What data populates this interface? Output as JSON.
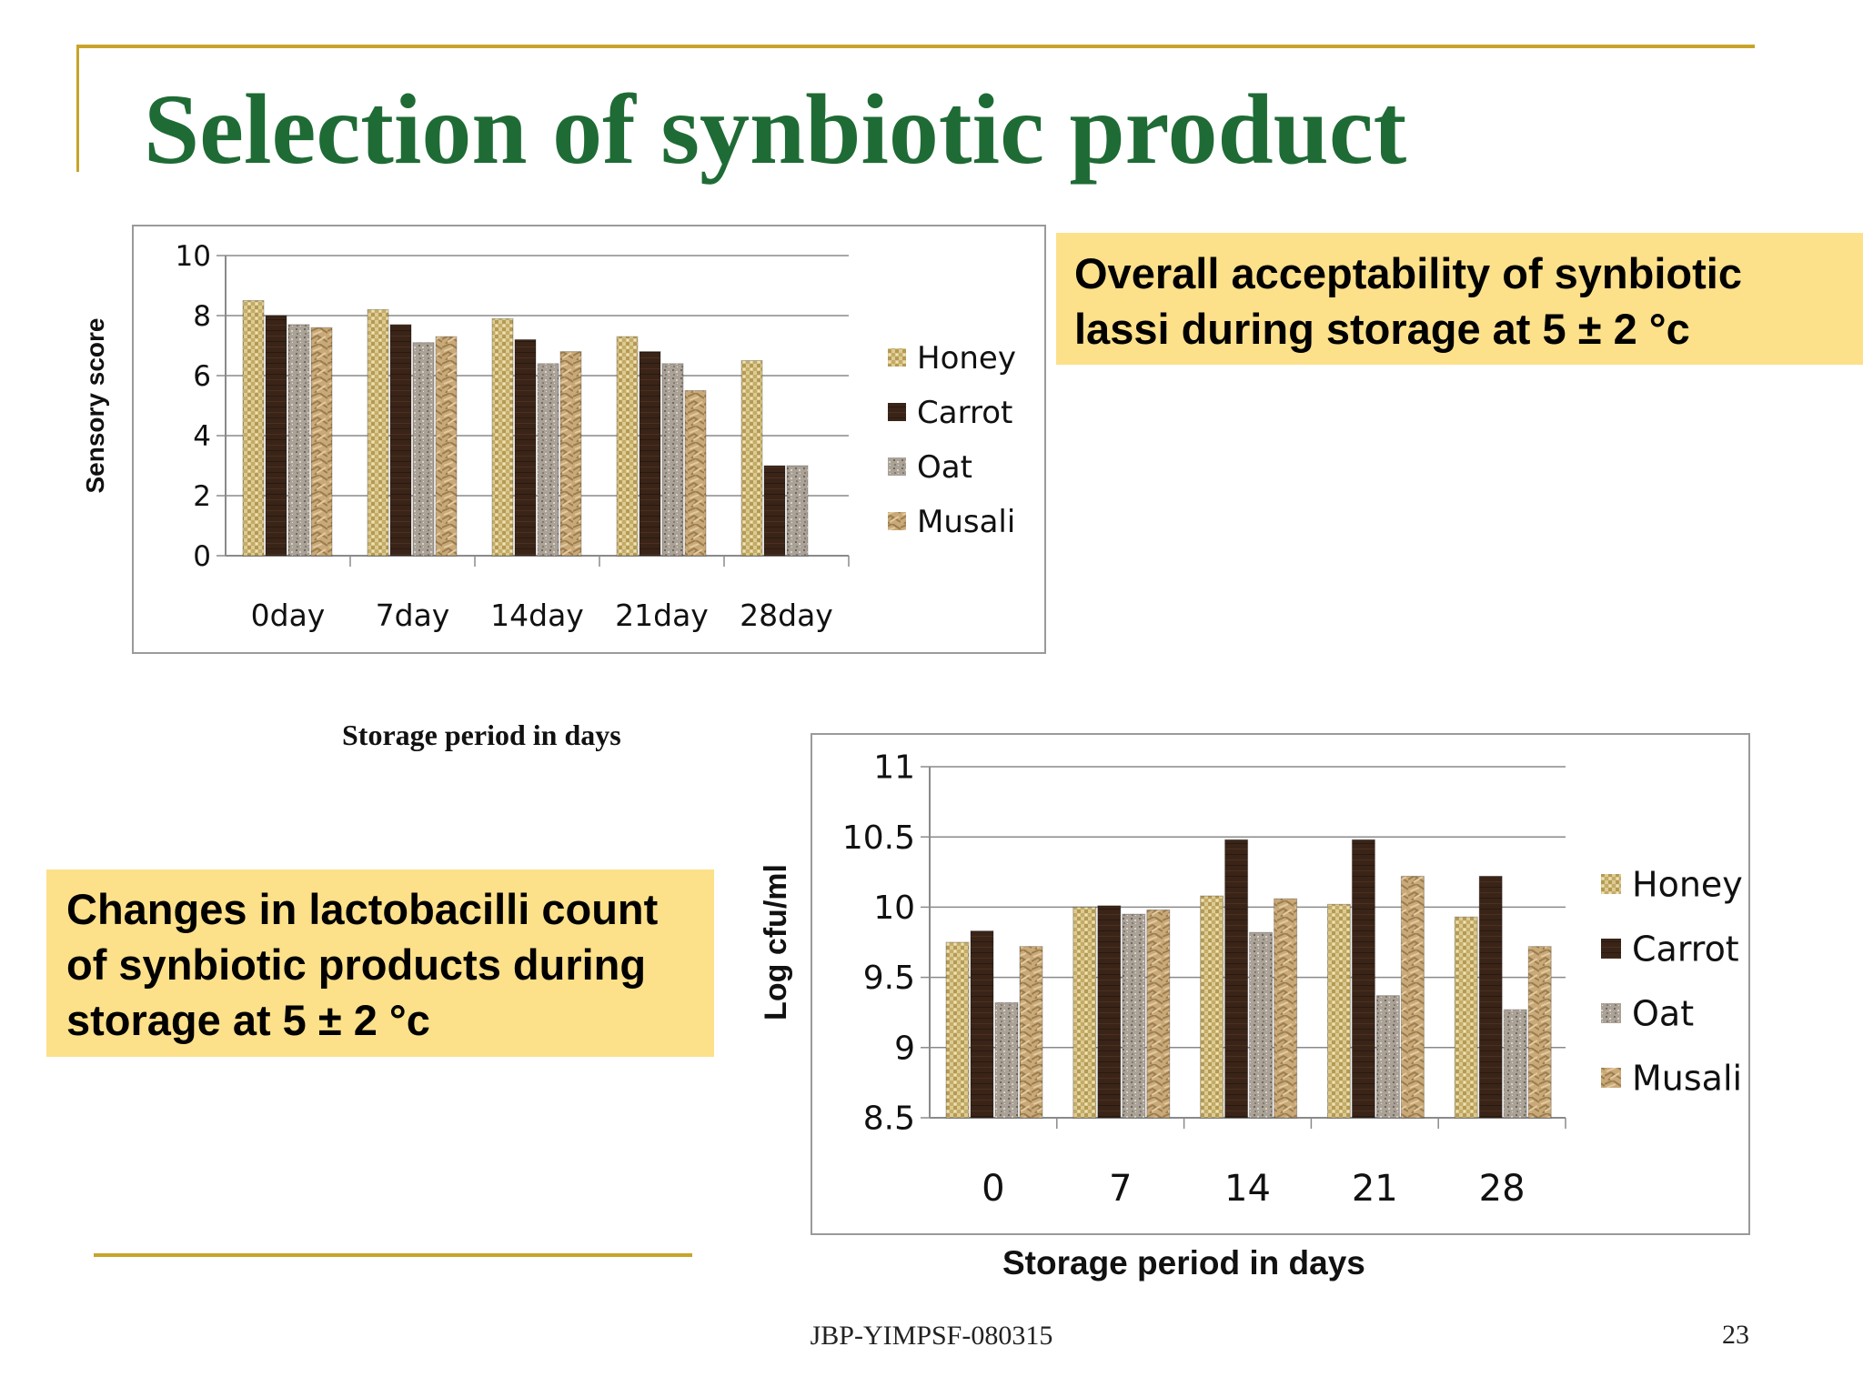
{
  "slide": {
    "title": "Selection of synbiotic product",
    "callout_top": "Overall acceptability of  synbiotic lassi during storage at 5 ± 2 °c",
    "callout_left": "Changes in lactobacilli count  of synbiotic products during storage at 5 ± 2 °c",
    "footer": "JBP-YIMPSF-080315",
    "page_number": "23",
    "accent_color": "#c8a42a",
    "title_color": "#1f6b35",
    "callout_color": "#fde08a"
  },
  "chart_data": [
    {
      "type": "bar",
      "categories": [
        "0day",
        "7day",
        "14day",
        "21day",
        "28day"
      ],
      "series": [
        {
          "name": "Honey",
          "values": [
            8.5,
            8.2,
            7.9,
            7.3,
            6.5
          ],
          "color": "#d6c48a",
          "pattern": "woven"
        },
        {
          "name": "Carrot",
          "values": [
            8.0,
            7.7,
            7.2,
            6.8,
            3.0
          ],
          "color": "#3a2418",
          "pattern": "dark"
        },
        {
          "name": "Oat",
          "values": [
            7.7,
            7.1,
            6.4,
            6.4,
            3.0
          ],
          "color": "#a39a8f",
          "pattern": "granite"
        },
        {
          "name": "Musali",
          "values": [
            7.6,
            7.3,
            6.8,
            5.5,
            null
          ],
          "color": "#c9a978",
          "pattern": "crumpled"
        }
      ],
      "title": "",
      "xlabel": "Storage period in days",
      "ylabel": "Sensory  score",
      "ylim": [
        0,
        10
      ],
      "yticks": [
        "0",
        "2",
        "4",
        "6",
        "8",
        "10"
      ],
      "grid": true,
      "legend": "right"
    },
    {
      "type": "bar",
      "categories": [
        "0",
        "7",
        "14",
        "21",
        "28"
      ],
      "series": [
        {
          "name": "Honey",
          "values": [
            9.75,
            10.0,
            10.08,
            10.02,
            9.93
          ],
          "color": "#d6c48a",
          "pattern": "woven"
        },
        {
          "name": "Carrot",
          "values": [
            9.83,
            10.01,
            10.48,
            10.48,
            10.22
          ],
          "color": "#3a2418",
          "pattern": "dark"
        },
        {
          "name": "Oat",
          "values": [
            9.32,
            9.95,
            9.82,
            9.37,
            9.27
          ],
          "color": "#a39a8f",
          "pattern": "granite"
        },
        {
          "name": "Musali",
          "values": [
            9.72,
            9.98,
            10.06,
            10.22,
            9.72
          ],
          "color": "#c9a978",
          "pattern": "crumpled"
        }
      ],
      "title": "",
      "xlabel": "Storage period in days",
      "ylabel": "Log cfu/ml",
      "ylim": [
        8.5,
        11
      ],
      "yticks": [
        "8.5",
        "9",
        "9.5",
        "10",
        "10.5",
        "11"
      ],
      "grid": true,
      "legend": "right"
    }
  ]
}
